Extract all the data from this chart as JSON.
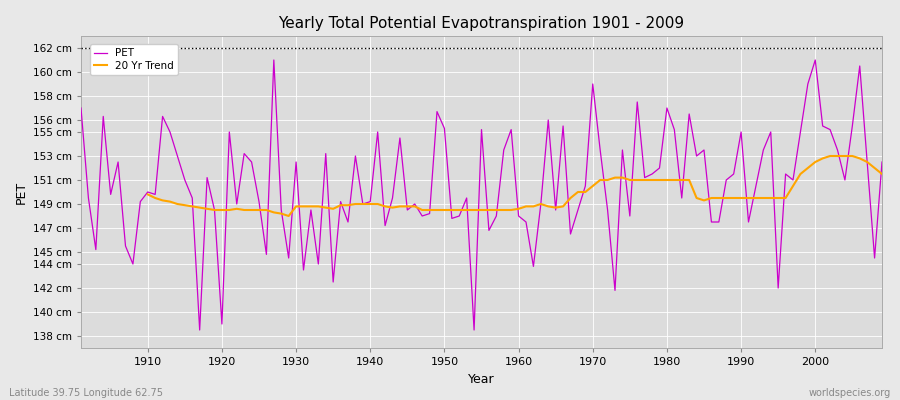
{
  "title": "Yearly Total Potential Evapotranspiration 1901 - 2009",
  "xlabel": "Year",
  "ylabel": "PET",
  "subtitle_left": "Latitude 39.75 Longitude 62.75",
  "subtitle_right": "worldspecies.org",
  "pet_color": "#CC00CC",
  "trend_color": "#FFA500",
  "background_color": "#E8E8E8",
  "plot_bg_color": "#DCDCDC",
  "ylim_min": 137,
  "ylim_max": 163,
  "yticks": [
    138,
    140,
    142,
    144,
    145,
    147,
    149,
    151,
    153,
    155,
    156,
    158,
    160,
    162
  ],
  "dashed_top": 162,
  "years": [
    1901,
    1902,
    1903,
    1904,
    1905,
    1906,
    1907,
    1908,
    1909,
    1910,
    1911,
    1912,
    1913,
    1914,
    1915,
    1916,
    1917,
    1918,
    1919,
    1920,
    1921,
    1922,
    1923,
    1924,
    1925,
    1926,
    1927,
    1928,
    1929,
    1930,
    1931,
    1932,
    1933,
    1934,
    1935,
    1936,
    1937,
    1938,
    1939,
    1940,
    1941,
    1942,
    1943,
    1944,
    1945,
    1946,
    1947,
    1948,
    1949,
    1950,
    1951,
    1952,
    1953,
    1954,
    1955,
    1956,
    1957,
    1958,
    1959,
    1960,
    1961,
    1962,
    1963,
    1964,
    1965,
    1966,
    1967,
    1968,
    1969,
    1970,
    1971,
    1972,
    1973,
    1974,
    1975,
    1976,
    1977,
    1978,
    1979,
    1980,
    1981,
    1982,
    1983,
    1984,
    1985,
    1986,
    1987,
    1988,
    1989,
    1990,
    1991,
    1992,
    1993,
    1994,
    1995,
    1996,
    1997,
    1998,
    1999,
    2000,
    2001,
    2002,
    2003,
    2004,
    2005,
    2006,
    2007,
    2008,
    2009
  ],
  "pet_values": [
    157.0,
    149.5,
    145.2,
    156.3,
    149.8,
    152.5,
    145.5,
    144.0,
    149.2,
    150.0,
    149.8,
    156.3,
    155.0,
    153.0,
    151.0,
    149.5,
    138.5,
    151.2,
    148.5,
    139.0,
    155.0,
    149.0,
    153.2,
    152.5,
    149.2,
    144.8,
    161.0,
    148.5,
    144.5,
    152.5,
    143.5,
    148.5,
    144.0,
    153.2,
    142.5,
    149.2,
    147.5,
    153.0,
    149.0,
    149.2,
    155.0,
    147.2,
    149.5,
    154.5,
    148.5,
    149.0,
    148.0,
    148.2,
    156.7,
    155.3,
    147.8,
    148.0,
    149.5,
    138.5,
    155.2,
    146.8,
    148.0,
    153.5,
    155.2,
    148.0,
    147.5,
    143.8,
    149.0,
    156.0,
    148.5,
    155.5,
    146.5,
    148.5,
    150.5,
    159.0,
    153.5,
    148.5,
    141.8,
    153.5,
    148.0,
    157.5,
    151.2,
    151.5,
    152.0,
    157.0,
    155.2,
    149.5,
    156.5,
    153.0,
    153.5,
    147.5,
    147.5,
    151.0,
    151.5,
    155.0,
    147.5,
    150.5,
    153.5,
    155.0,
    142.0,
    151.5,
    151.0,
    155.0,
    159.0,
    161.0,
    155.5,
    155.2,
    153.5,
    151.0,
    155.5,
    160.5,
    152.5,
    144.5,
    152.5
  ],
  "trend_years": [
    1910,
    1911,
    1912,
    1913,
    1914,
    1915,
    1916,
    1917,
    1918,
    1919,
    1920,
    1921,
    1922,
    1923,
    1924,
    1925,
    1926,
    1927,
    1928,
    1929,
    1930,
    1931,
    1932,
    1933,
    1934,
    1935,
    1936,
    1937,
    1938,
    1939,
    1940,
    1941,
    1942,
    1943,
    1944,
    1945,
    1946,
    1947,
    1948,
    1949,
    1950,
    1951,
    1952,
    1953,
    1954,
    1955,
    1956,
    1957,
    1958,
    1959,
    1960,
    1961,
    1962,
    1963,
    1964,
    1965,
    1966,
    1967,
    1968,
    1969,
    1970,
    1971,
    1972,
    1973,
    1974,
    1975,
    1976,
    1977,
    1978,
    1979,
    1980,
    1981,
    1982,
    1983,
    1984,
    1985,
    1986,
    1987,
    1988,
    1989,
    1990,
    1991,
    1992,
    1993,
    1994,
    1995,
    1996,
    1997,
    1998,
    1999,
    2000,
    2001,
    2002,
    2003,
    2004,
    2005,
    2006,
    2007,
    2008,
    2009
  ],
  "trend_values": [
    149.8,
    149.5,
    149.3,
    149.2,
    149.0,
    148.9,
    148.8,
    148.7,
    148.6,
    148.5,
    148.5,
    148.5,
    148.6,
    148.5,
    148.5,
    148.5,
    148.5,
    148.3,
    148.2,
    148.0,
    148.8,
    148.8,
    148.8,
    148.8,
    148.7,
    148.6,
    148.9,
    148.9,
    149.0,
    149.0,
    149.0,
    149.0,
    148.8,
    148.7,
    148.8,
    148.8,
    148.8,
    148.5,
    148.5,
    148.5,
    148.5,
    148.5,
    148.5,
    148.5,
    148.5,
    148.5,
    148.5,
    148.5,
    148.5,
    148.5,
    148.6,
    148.8,
    148.8,
    149.0,
    148.8,
    148.7,
    148.8,
    149.5,
    150.0,
    150.0,
    150.5,
    151.0,
    151.0,
    151.2,
    151.2,
    151.0,
    151.0,
    151.0,
    151.0,
    151.0,
    151.0,
    151.0,
    151.0,
    151.0,
    149.5,
    149.3,
    149.5,
    149.5,
    149.5,
    149.5,
    149.5,
    149.5,
    149.5,
    149.5,
    149.5,
    149.5,
    149.5,
    150.5,
    151.5,
    152.0,
    152.5,
    152.8,
    153.0,
    153.0,
    153.0,
    153.0,
    152.8,
    152.5,
    152.0,
    151.5
  ],
  "xticks": [
    1910,
    1920,
    1930,
    1940,
    1950,
    1960,
    1970,
    1980,
    1990,
    2000
  ],
  "xlim_min": 1901,
  "xlim_max": 2009
}
